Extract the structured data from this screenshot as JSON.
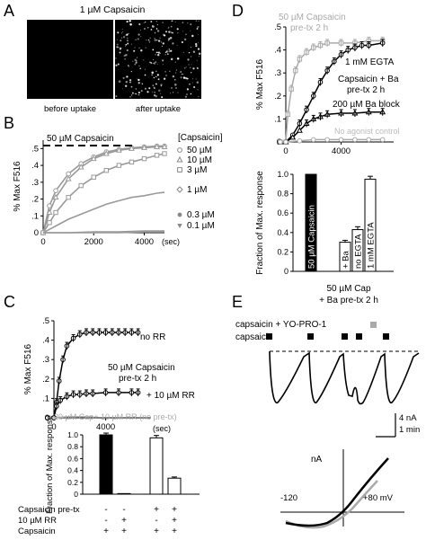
{
  "panel_letters": {
    "A": "A",
    "B": "B",
    "C": "C",
    "D": "D",
    "E": "E"
  },
  "panel_A": {
    "title": "1 µM Capsaicin",
    "left_caption": "before uptake",
    "right_caption": "after uptake"
  },
  "chart_data": [
    {
      "id": "B",
      "type": "line",
      "annotation": "50 µM Capsaicin",
      "legend_title": "[Capsaicin]",
      "ylabel": "% Max F516",
      "x_unit": "(sec)",
      "xlim": [
        0,
        4800
      ],
      "ylim": [
        0,
        0.55
      ],
      "x_ticks": [
        0,
        2000,
        4000
      ],
      "y_ticks": [
        0,
        0.1,
        0.2,
        0.3,
        0.4,
        0.5
      ],
      "y_tick_labels": [
        "0",
        ".1",
        ".2",
        ".3",
        ".4",
        ".5"
      ],
      "series": [
        {
          "name": "50 µM",
          "color": "#999999",
          "x": [
            0,
            250,
            500,
            1000,
            1500,
            2000,
            2500,
            3000,
            3500,
            4000,
            4500,
            4800
          ],
          "y": [
            0,
            0.16,
            0.25,
            0.35,
            0.41,
            0.45,
            0.48,
            0.495,
            0.505,
            0.51,
            0.515,
            0.515
          ]
        },
        {
          "name": "10 µM",
          "color": "#999999",
          "x": [
            0,
            250,
            500,
            1000,
            1500,
            2000,
            2500,
            3000,
            3500,
            4000,
            4500,
            4800
          ],
          "y": [
            0,
            0.12,
            0.21,
            0.32,
            0.39,
            0.44,
            0.47,
            0.49,
            0.5,
            0.505,
            0.51,
            0.51
          ]
        },
        {
          "name": "3 µM",
          "color": "#999999",
          "x": [
            0,
            250,
            500,
            1000,
            1500,
            2000,
            2500,
            3000,
            3500,
            4000,
            4500,
            4800
          ],
          "y": [
            0,
            0.06,
            0.12,
            0.21,
            0.28,
            0.33,
            0.37,
            0.4,
            0.42,
            0.44,
            0.46,
            0.47
          ]
        },
        {
          "name": "1 µM",
          "color": "#999999",
          "x": [
            0,
            250,
            500,
            1000,
            1500,
            2000,
            2500,
            3000,
            3500,
            4000,
            4500,
            4800
          ],
          "y": [
            0,
            0.02,
            0.04,
            0.08,
            0.11,
            0.14,
            0.17,
            0.19,
            0.21,
            0.22,
            0.235,
            0.24
          ]
        },
        {
          "name": "0.3 µM",
          "color": "#999999",
          "x": [
            0,
            1000,
            2000,
            3000,
            4000,
            4800
          ],
          "y": [
            0,
            0.0,
            0.005,
            0.005,
            0.01,
            0.01
          ]
        },
        {
          "name": "0.1 µM",
          "color": "#999999",
          "x": [
            0,
            1000,
            2000,
            3000,
            4000,
            4800
          ],
          "y": [
            0,
            0.0,
            0.0,
            0.0,
            0.005,
            0.005
          ]
        }
      ]
    },
    {
      "id": "C-top",
      "type": "line",
      "ylabel": "% Max F516",
      "x_unit": "(sec)",
      "xlim": [
        0,
        7500
      ],
      "ylim": [
        0,
        0.5
      ],
      "x_ticks": [
        0,
        4000,
        8000
      ],
      "y_ticks": [
        0,
        0.1,
        0.2,
        0.3,
        0.4,
        0.5
      ],
      "y_tick_labels": [
        "0",
        ".1",
        ".2",
        ".3",
        ".4",
        ".5"
      ],
      "labels": {
        "no_rr": "no RR",
        "pretx_line1": "50 µM Capsaicin",
        "pretx_line2": "pre-tx 2 h",
        "rr": "+ 10 µM RR",
        "no_pretx": "20 µM Cap+ 10 µM RR (no pre-tx)"
      },
      "series": [
        {
          "name": "no RR",
          "color": "#000000",
          "x": [
            -500,
            0,
            200,
            400,
            700,
            1000,
            1500,
            2000,
            2500,
            3000,
            3500,
            4000,
            4500,
            5000,
            5500,
            6000,
            6500
          ],
          "y": [
            0,
            0,
            0.08,
            0.19,
            0.3,
            0.37,
            0.41,
            0.43,
            0.44,
            0.44,
            0.44,
            0.44,
            0.44,
            0.44,
            0.44,
            0.44,
            0.44
          ]
        },
        {
          "name": "+ 10 µM RR",
          "color": "#000000",
          "x": [
            -500,
            0,
            200,
            500,
            1000,
            1500,
            2000,
            2500,
            3000,
            4000,
            5000,
            6000,
            6500
          ],
          "y": [
            0,
            0,
            0.06,
            0.09,
            0.11,
            0.12,
            0.12,
            0.125,
            0.125,
            0.13,
            0.13,
            0.13,
            0.13
          ]
        },
        {
          "name": "20 µM Cap+ 10 µM RR (no pre-tx)",
          "color": "#aaaaaa",
          "x": [
            -500,
            0,
            1000,
            2000,
            3000
          ],
          "y": [
            0,
            0,
            0.005,
            0.005,
            0.005
          ]
        }
      ]
    },
    {
      "id": "C-bottom",
      "type": "bar",
      "ylabel": "Fraction of Max. response",
      "ylim": [
        0,
        1.0
      ],
      "y_ticks": [
        0,
        0.2,
        0.4,
        0.6,
        0.8,
        1.0
      ],
      "y_tick_labels": [
        "0",
        "0.2",
        "0.4",
        "0.6",
        "0.8",
        "1.0"
      ],
      "bars": [
        {
          "value": 1.0,
          "fill": "#000000",
          "error": 0.03
        },
        {
          "value": 0.01,
          "fill": "#000000",
          "error": 0.0
        },
        {
          "value": 0.95,
          "fill": "#ffffff",
          "error": 0.04
        },
        {
          "value": 0.27,
          "fill": "#ffffff",
          "error": 0.02
        }
      ],
      "condition_rows": [
        {
          "label": "Capsaicin pre-tx",
          "marks": [
            "-",
            "-",
            "+",
            "+"
          ]
        },
        {
          "label": "10 µM RR",
          "marks": [
            "-",
            "+",
            "-",
            "+"
          ]
        },
        {
          "label": "Capsaicin",
          "marks": [
            "+",
            "+",
            "+",
            "+"
          ]
        }
      ]
    },
    {
      "id": "D-top",
      "type": "line",
      "ylabel": "% Max F516",
      "x_unit": "",
      "xlim": [
        0,
        7800
      ],
      "ylim": [
        0,
        0.5
      ],
      "x_ticks": [
        0,
        4000,
        8000
      ],
      "y_ticks": [
        0,
        0.1,
        0.2,
        0.3,
        0.4,
        0.5
      ],
      "y_tick_labels": [
        "0",
        ".1",
        ".2",
        ".3",
        ".4",
        ".5"
      ],
      "labels": {
        "cap_pretx_line1": "50 µM Capsaicin",
        "cap_pretx_line2": "pre-tx 2 h",
        "egta": "1 mM EGTA",
        "ba_pretx_line1": "Capsaicin + Ba",
        "ba_pretx_line2": "pre-tx 2 h",
        "ba_block": "200 µM Ba block",
        "no_agonist": "No agonist control"
      },
      "series": [
        {
          "name": "50 µM Capsaicin pre-tx 2 h",
          "color": "#aaaaaa",
          "x": [
            -400,
            0,
            150,
            400,
            700,
            1000,
            1500,
            2000,
            2500,
            3000,
            4000,
            5000,
            6000,
            7000
          ],
          "y": [
            0,
            0,
            0.12,
            0.23,
            0.31,
            0.36,
            0.39,
            0.41,
            0.42,
            0.43,
            0.43,
            0.43,
            0.44,
            0.44
          ]
        },
        {
          "name": "1 mM EGTA",
          "color": "#000000",
          "x": [
            -400,
            0,
            500,
            1000,
            1500,
            2000,
            2500,
            3000,
            3500,
            4000,
            4500,
            5000,
            5500,
            6000,
            7000
          ],
          "y": [
            0,
            0,
            0.03,
            0.08,
            0.14,
            0.2,
            0.26,
            0.31,
            0.35,
            0.38,
            0.4,
            0.41,
            0.42,
            0.42,
            0.43
          ]
        },
        {
          "name": "200 µM Ba block",
          "color": "#000000",
          "x": [
            -400,
            0,
            500,
            1000,
            1500,
            2000,
            2500,
            3000,
            4000,
            5000,
            6000,
            7000
          ],
          "y": [
            0,
            0,
            0.02,
            0.05,
            0.08,
            0.1,
            0.11,
            0.12,
            0.125,
            0.125,
            0.13,
            0.13
          ]
        },
        {
          "name": "No agonist control",
          "color": "#aaaaaa",
          "x": [
            -400,
            0,
            1000,
            2000,
            3000,
            4000,
            5000,
            6000,
            7000
          ],
          "y": [
            0,
            0,
            0.005,
            0.01,
            0.01,
            0.01,
            0.01,
            0.01,
            0.01
          ]
        }
      ]
    },
    {
      "id": "D-bottom",
      "type": "bar",
      "ylabel": "Fraction of Max. response",
      "ylim": [
        0,
        1.0
      ],
      "y_ticks": [
        0,
        0.2,
        0.4,
        0.6,
        0.8,
        1.0
      ],
      "y_tick_labels": [
        "0",
        "0.2",
        "0.4",
        "0.6",
        "0.8",
        "1.0"
      ],
      "bars": [
        {
          "label": "50 µM Capsaicin",
          "value": 1.0,
          "fill": "#000000",
          "error": 0.0
        },
        {
          "label": "+ Ba",
          "value": 0.3,
          "fill": "#ffffff",
          "error": 0.02
        },
        {
          "label": "no EGTA",
          "value": 0.43,
          "fill": "#ffffff",
          "error": 0.03
        },
        {
          "label": "1 mM EGTA",
          "value": 0.95,
          "fill": "#ffffff",
          "error": 0.03
        }
      ],
      "group_label_line1": "50 µM Cap",
      "group_label_line2": "+ Ba pre-tx 2 h"
    }
  ],
  "panel_E": {
    "legend_line1": "capsaicin + YO-PRO-1",
    "legend_line2": "capsaicin",
    "scale_current": "4 nA",
    "scale_time": "1 min",
    "iv_ylabel": "nA",
    "iv_xleft": "-120",
    "iv_xright": "+80 mV"
  }
}
